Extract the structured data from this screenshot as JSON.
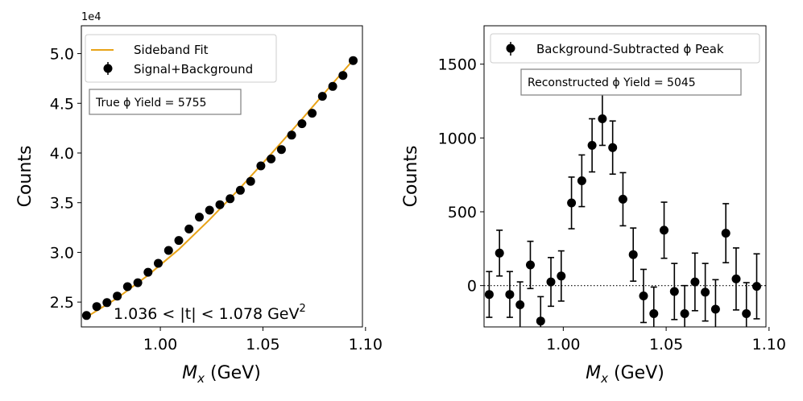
{
  "chart_data": [
    {
      "type": "scatter",
      "xlabel": "M",
      "xlabel_sub": "x",
      "xlabel_unit": " (GeV)",
      "ylabel": "Counts",
      "xlim": [
        0.9615,
        1.0985
      ],
      "ylim": [
        22500,
        52800
      ],
      "y_offset_label": "1e4",
      "x_ticks": [
        1.0,
        1.05,
        1.1
      ],
      "x_tick_labels": [
        "1.00",
        "1.05",
        "1.10"
      ],
      "y_ticks": [
        25000,
        30000,
        35000,
        40000,
        45000,
        50000
      ],
      "y_tick_labels": [
        "2.5",
        "3.0",
        "3.5",
        "4.0",
        "4.5",
        "5.0"
      ],
      "legend": [
        {
          "label": "Sideband Fit",
          "color": "#E8A317",
          "marker": "line"
        },
        {
          "label": "Signal+Background",
          "color": "#000000",
          "marker": "errorbar"
        }
      ],
      "info_box": "True ϕ Yield = 5755",
      "annotation": {
        "text": "1.036 < |t| < 1.078 GeV",
        "sup": "2"
      },
      "fit_color": "#E8A317",
      "series": [
        {
          "name": "Signal+Background",
          "x": [
            0.964,
            0.969,
            0.974,
            0.979,
            0.984,
            0.989,
            0.994,
            0.999,
            1.004,
            1.009,
            1.014,
            1.019,
            1.024,
            1.029,
            1.034,
            1.039,
            1.044,
            1.049,
            1.054,
            1.059,
            1.064,
            1.069,
            1.074,
            1.079,
            1.084,
            1.089,
            1.094
          ],
          "y": [
            23650,
            24550,
            24950,
            25600,
            26550,
            26950,
            28000,
            28900,
            30200,
            31200,
            32350,
            33550,
            34250,
            34800,
            35400,
            36250,
            37150,
            38700,
            39400,
            40350,
            41800,
            42950,
            44000,
            45700,
            46700,
            47800,
            49300
          ]
        },
        {
          "name": "Sideband Fit",
          "x": [
            0.964,
            0.979,
            0.994,
            1.009,
            1.024,
            1.039,
            1.054,
            1.069,
            1.084,
            1.095
          ],
          "y": [
            23500,
            25400,
            27700,
            30300,
            33300,
            36500,
            39900,
            43400,
            47000,
            49600
          ]
        }
      ]
    },
    {
      "type": "scatter",
      "xlabel": "M",
      "xlabel_sub": "x",
      "xlabel_unit": " (GeV)",
      "ylabel": "Counts",
      "xlim": [
        0.9615,
        1.0985
      ],
      "ylim": [
        -280,
        1760
      ],
      "x_ticks": [
        1.0,
        1.05,
        1.1
      ],
      "x_tick_labels": [
        "1.00",
        "1.05",
        "1.10"
      ],
      "y_ticks": [
        0,
        500,
        1000,
        1500
      ],
      "y_tick_labels": [
        "0",
        "500",
        "1000",
        "1500"
      ],
      "legend": [
        {
          "label": "Background-Subtracted ϕ Peak",
          "color": "#000000",
          "marker": "errorbar"
        }
      ],
      "info_box": "Reconstructed ϕ Yield = 5045",
      "zero_line": true,
      "series": [
        {
          "name": "Background-Subtracted ϕ Peak",
          "x": [
            0.964,
            0.969,
            0.974,
            0.979,
            0.984,
            0.989,
            0.994,
            0.999,
            1.004,
            1.009,
            1.014,
            1.019,
            1.024,
            1.029,
            1.034,
            1.039,
            1.044,
            1.049,
            1.054,
            1.059,
            1.064,
            1.069,
            1.074,
            1.079,
            1.084,
            1.089,
            1.094
          ],
          "y": [
            -60,
            220,
            -60,
            -130,
            140,
            -240,
            25,
            65,
            560,
            710,
            950,
            1130,
            935,
            585,
            210,
            -70,
            -190,
            375,
            -40,
            -190,
            25,
            -45,
            -160,
            355,
            45,
            -190,
            -5
          ],
          "err": [
            155,
            155,
            155,
            155,
            160,
            165,
            165,
            170,
            175,
            175,
            180,
            180,
            180,
            180,
            180,
            180,
            180,
            190,
            190,
            190,
            195,
            195,
            200,
            200,
            210,
            210,
            220
          ]
        }
      ]
    }
  ]
}
